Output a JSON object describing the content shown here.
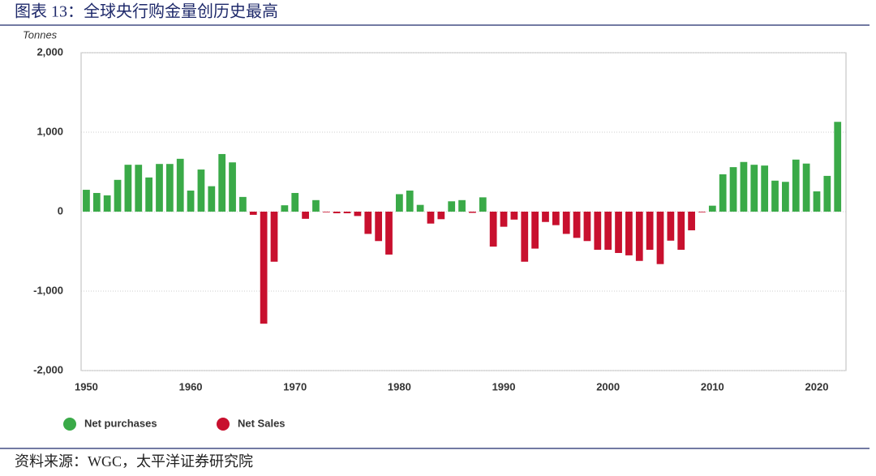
{
  "chart_data": {
    "type": "bar",
    "title": "图表 13：全球央行购金量创历史最高",
    "y_label": "Tonnes",
    "source": "资料来源：WGC，太平洋证券研究院",
    "x": [
      1950,
      1951,
      1952,
      1953,
      1954,
      1955,
      1956,
      1957,
      1958,
      1959,
      1960,
      1961,
      1962,
      1963,
      1964,
      1965,
      1966,
      1967,
      1968,
      1969,
      1970,
      1971,
      1972,
      1973,
      1974,
      1975,
      1976,
      1977,
      1978,
      1979,
      1980,
      1981,
      1982,
      1983,
      1984,
      1985,
      1986,
      1987,
      1988,
      1989,
      1990,
      1991,
      1992,
      1993,
      1994,
      1995,
      1996,
      1997,
      1998,
      1999,
      2000,
      2001,
      2002,
      2003,
      2004,
      2005,
      2006,
      2007,
      2008,
      2009,
      2010,
      2011,
      2012,
      2013,
      2014,
      2015,
      2016,
      2017,
      2018,
      2019,
      2020,
      2021,
      2022
    ],
    "series": [
      {
        "name": "Net purchases",
        "color": "#3aaa48",
        "values": [
          275,
          235,
          205,
          400,
          590,
          590,
          430,
          600,
          600,
          665,
          265,
          530,
          320,
          725,
          620,
          185,
          null,
          null,
          null,
          80,
          235,
          null,
          145,
          null,
          null,
          null,
          null,
          null,
          null,
          null,
          220,
          265,
          85,
          null,
          null,
          130,
          145,
          null,
          180,
          null,
          null,
          null,
          null,
          null,
          null,
          null,
          null,
          null,
          null,
          null,
          null,
          null,
          null,
          null,
          null,
          null,
          null,
          null,
          null,
          null,
          75,
          470,
          560,
          625,
          590,
          580,
          390,
          375,
          655,
          605,
          255,
          450,
          1130
        ]
      },
      {
        "name": "Net Sales",
        "color": "#c8102e",
        "values": [
          null,
          null,
          null,
          null,
          null,
          null,
          null,
          null,
          null,
          null,
          null,
          null,
          null,
          null,
          null,
          null,
          -40,
          -1410,
          -630,
          null,
          null,
          -90,
          null,
          -5,
          -20,
          -20,
          -55,
          -280,
          -370,
          -540,
          null,
          null,
          null,
          -150,
          -95,
          null,
          null,
          -15,
          null,
          -440,
          -190,
          -100,
          -630,
          -465,
          -130,
          -170,
          -280,
          -330,
          -370,
          -480,
          -480,
          -520,
          -550,
          -620,
          -480,
          -660,
          -365,
          -480,
          -235,
          -5,
          null,
          null,
          null,
          null,
          null,
          null,
          null,
          null,
          null,
          null,
          null,
          null,
          null
        ]
      }
    ],
    "xlim": [
      1949.5,
      2022.8
    ],
    "xticks": [
      1950,
      1960,
      1970,
      1980,
      1990,
      2000,
      2010,
      2020
    ],
    "ylim": [
      -2000,
      2000
    ],
    "yticks": [
      {
        "value": -2000,
        "label": "-2,000"
      },
      {
        "value": -1000,
        "label": "-1,000"
      },
      0,
      {
        "value": 1000,
        "label": "1,000"
      },
      {
        "value": 2000,
        "label": "2,000"
      }
    ],
    "grid": true
  }
}
